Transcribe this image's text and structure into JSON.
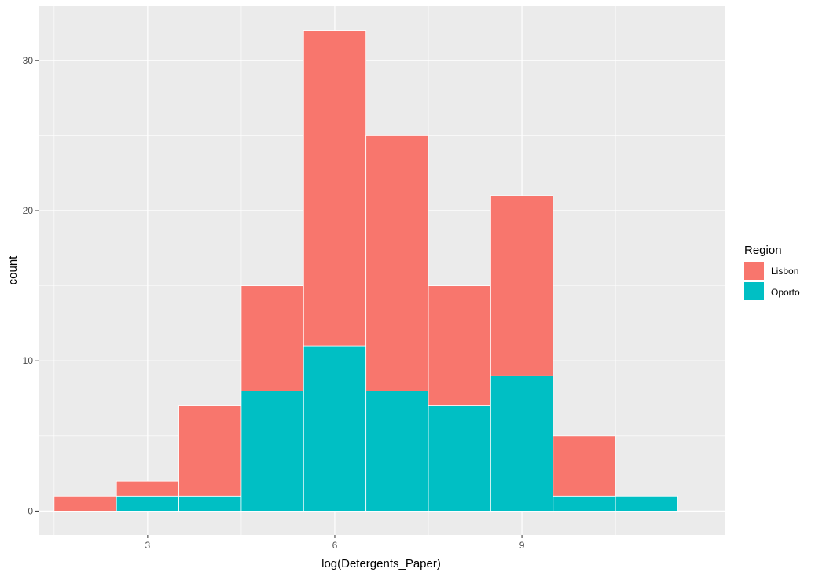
{
  "chart_data": {
    "type": "bar",
    "stacked": true,
    "histogram": true,
    "xlabel": "log(Detergents_Paper)",
    "ylabel": "count",
    "xlim": [
      1.25,
      12.25
    ],
    "ylim": [
      -1.6,
      33.6
    ],
    "x_ticks": [
      3,
      6,
      9
    ],
    "x_minor_ticks": [
      1.5,
      4.5,
      7.5,
      10.5
    ],
    "y_ticks": [
      0,
      10,
      20,
      30
    ],
    "y_minor_ticks": [
      5,
      15,
      25
    ],
    "bin_width": 1,
    "bin_centers": [
      2,
      3,
      4,
      5,
      6,
      7,
      8,
      9,
      10,
      11
    ],
    "series": [
      {
        "name": "Oporto",
        "color": "#00BFC4",
        "values": [
          0,
          1,
          1,
          8,
          11,
          8,
          7,
          9,
          1,
          1
        ]
      },
      {
        "name": "Lisbon",
        "color": "#F8766D",
        "values": [
          1,
          1,
          6,
          7,
          21,
          17,
          8,
          12,
          4,
          0
        ]
      }
    ],
    "legend": {
      "title": "Region",
      "position": "right",
      "entries": [
        {
          "label": "Lisbon",
          "color": "#F8766D"
        },
        {
          "label": "Oporto",
          "color": "#00BFC4"
        }
      ]
    },
    "panel_background": "#EBEBEB",
    "grid": true,
    "grid_color": "#FFFFFF"
  }
}
